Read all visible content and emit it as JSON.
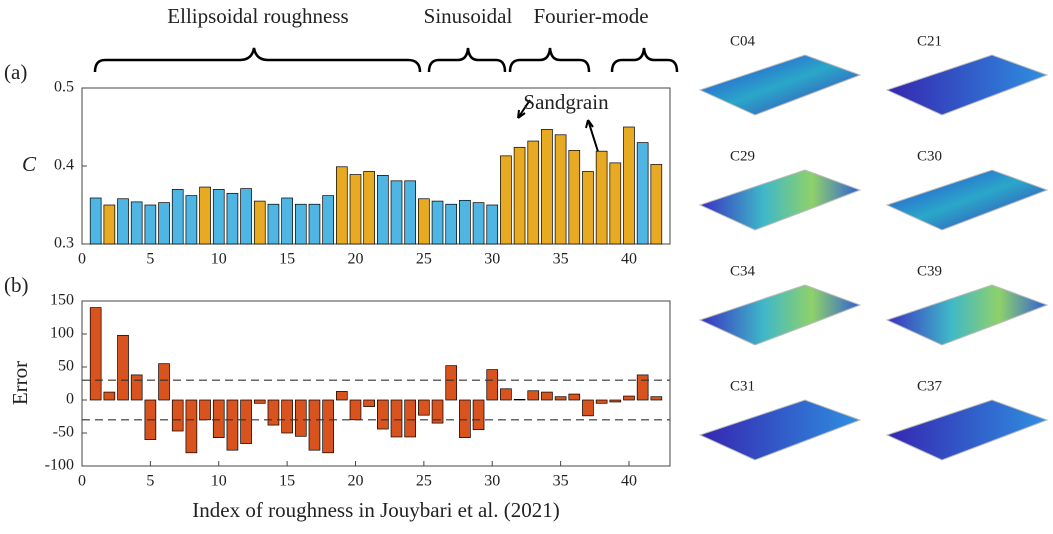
{
  "chart_data": [
    {
      "type": "bar",
      "panel_label": "(a)",
      "ylabel": "C",
      "group_labels": [
        "Ellipsoidal roughness",
        "Sinusoidal",
        "Fourier-mode"
      ],
      "annotation": "Sandgrain",
      "x": [
        1,
        2,
        3,
        4,
        5,
        6,
        7,
        8,
        9,
        10,
        11,
        12,
        13,
        14,
        15,
        16,
        17,
        18,
        19,
        20,
        21,
        22,
        23,
        24,
        25,
        26,
        27,
        28,
        29,
        30,
        31,
        32,
        33,
        34,
        35,
        36,
        37,
        38,
        39,
        40,
        41,
        42
      ],
      "values": [
        0.359,
        0.35,
        0.358,
        0.354,
        0.35,
        0.353,
        0.37,
        0.362,
        0.373,
        0.37,
        0.365,
        0.371,
        0.355,
        0.351,
        0.359,
        0.351,
        0.351,
        0.362,
        0.399,
        0.389,
        0.393,
        0.388,
        0.381,
        0.381,
        0.358,
        0.355,
        0.351,
        0.356,
        0.353,
        0.35,
        0.413,
        0.424,
        0.432,
        0.447,
        0.44,
        0.42,
        0.393,
        0.419,
        0.404,
        0.45,
        0.43,
        0.402
      ],
      "colors": [
        "#4fb6e3",
        "#e8a923",
        "#4fb6e3",
        "#4fb6e3",
        "#4fb6e3",
        "#4fb6e3",
        "#4fb6e3",
        "#4fb6e3",
        "#e8a923",
        "#4fb6e3",
        "#4fb6e3",
        "#4fb6e3",
        "#e8a923",
        "#4fb6e3",
        "#4fb6e3",
        "#4fb6e3",
        "#4fb6e3",
        "#4fb6e3",
        "#e8a923",
        "#e8a923",
        "#e8a923",
        "#4fb6e3",
        "#4fb6e3",
        "#4fb6e3",
        "#e8a923",
        "#4fb6e3",
        "#4fb6e3",
        "#4fb6e3",
        "#4fb6e3",
        "#4fb6e3",
        "#e8a923",
        "#e8a923",
        "#e8a923",
        "#e8a923",
        "#e8a923",
        "#e8a923",
        "#e8a923",
        "#e8a923",
        "#e8a923",
        "#e8a923",
        "#4fb6e3",
        "#e8a923"
      ],
      "xlim": [
        0,
        43
      ],
      "xticks": [
        0,
        5,
        10,
        15,
        20,
        25,
        30,
        35,
        40
      ],
      "ylim": [
        0.3,
        0.5
      ],
      "yticks": [
        0.3,
        0.4,
        0.5
      ]
    },
    {
      "type": "bar",
      "panel_label": "(b)",
      "ylabel": "Error",
      "xlabel": "Index of roughness in Jouybari et al. (2021)",
      "x": [
        1,
        2,
        3,
        4,
        5,
        6,
        7,
        8,
        9,
        10,
        11,
        12,
        13,
        14,
        15,
        16,
        17,
        18,
        19,
        20,
        21,
        22,
        23,
        24,
        25,
        26,
        27,
        28,
        29,
        30,
        31,
        32,
        33,
        34,
        35,
        36,
        37,
        38,
        39,
        40,
        41,
        42
      ],
      "values": [
        140,
        12,
        98,
        38,
        -60,
        55,
        -47,
        -80,
        -30,
        -57,
        -76,
        -66,
        -5,
        -38,
        -50,
        -55,
        -76,
        -80,
        13,
        -30,
        -10,
        -44,
        -56,
        -56,
        -23,
        -35,
        52,
        -57,
        -45,
        46,
        17,
        1,
        14,
        12,
        5,
        9,
        -24,
        -5,
        -3,
        6,
        38,
        5
      ],
      "color": "#d9531e",
      "reference_lines": [
        30,
        -30
      ],
      "xlim": [
        0,
        43
      ],
      "xticks": [
        0,
        5,
        10,
        15,
        20,
        25,
        30,
        35,
        40
      ],
      "ylim": [
        -100,
        150
      ],
      "yticks": [
        -100,
        -50,
        0,
        50,
        100,
        150
      ]
    }
  ],
  "panels": [
    "C04",
    "C21",
    "C29",
    "C30",
    "C34",
    "C39",
    "C31",
    "C37"
  ]
}
